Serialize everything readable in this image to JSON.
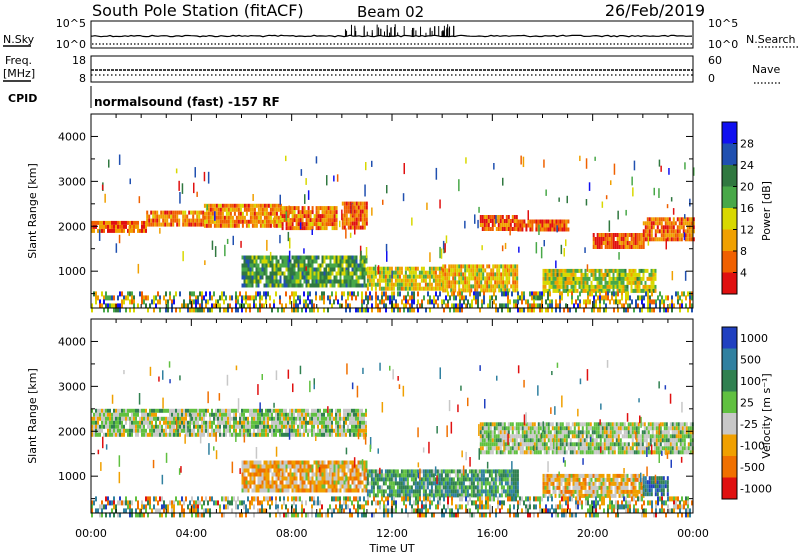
{
  "header": {
    "station": "South Pole Station (fitACF)",
    "beam": "Beam 02",
    "date": "26/Feb/2019"
  },
  "params": {
    "nsky_label": "N.Sky",
    "nsearch_label": "N.Search",
    "freq_label_1": "Freq.",
    "freq_label_2": "[MHz]",
    "nave_label": "Nave",
    "cpid_label": "CPID",
    "noise_left_ticks": [
      "10^5",
      "10^0"
    ],
    "noise_right_ticks": [
      "10^5",
      "10^0"
    ],
    "freq_left_ticks": [
      "18",
      "8"
    ],
    "freq_right_ticks": [
      "60",
      "0"
    ],
    "cpid_text": "normalsound (fast) -157 RF"
  },
  "x_axis": {
    "label": "Time UT",
    "ticks": [
      "00:00",
      "04:00",
      "08:00",
      "12:00",
      "16:00",
      "20:00",
      "00:00"
    ]
  },
  "panels": {
    "power": {
      "ylabel": "Slant Range [km]",
      "yticks": [
        "1000",
        "2000",
        "3000",
        "4000"
      ],
      "cbar_label": "Power [dB]",
      "cbar_ticks": [
        "4",
        "8",
        "12",
        "16",
        "20",
        "24",
        "28"
      ],
      "cbar_colors": [
        "#1010f0",
        "#2050b0",
        "#307840",
        "#48a848",
        "#d8d800",
        "#f0a000",
        "#f06000",
        "#e01010"
      ]
    },
    "velocity": {
      "ylabel": "Slant Range [km]",
      "yticks": [
        "1000",
        "2000",
        "3000",
        "4000"
      ],
      "cbar_label": "Velocity [m s⁻¹]",
      "cbar_ticks": [
        "1000",
        "500",
        "100",
        "25",
        "-25",
        "-100",
        "-500",
        "-1000"
      ],
      "cbar_colors": [
        "#2040c0",
        "#3080a0",
        "#308050",
        "#60c040",
        "#c8c8c8",
        "#f0a000",
        "#f07000",
        "#e01010"
      ]
    }
  },
  "chart_data": {
    "type": "heatmap",
    "title": "South Pole Station (fitACF)",
    "xlabel": "Time UT",
    "ylabel": "Slant Range [km]",
    "x_range_hours": [
      0,
      24
    ],
    "y_range_km": [
      180,
      4500
    ],
    "grid": false,
    "series": [
      {
        "name": "Power [dB]",
        "clim": [
          0,
          30
        ],
        "bands": [
          {
            "t_start": 0.0,
            "t_end": 2.2,
            "r_low": 1880,
            "r_high": 2120,
            "value": 6
          },
          {
            "t_start": 2.2,
            "t_end": 4.5,
            "r_low": 2050,
            "r_high": 2350,
            "value": 7
          },
          {
            "t_start": 4.5,
            "t_end": 7.6,
            "r_low": 1980,
            "r_high": 2500,
            "value": 8
          },
          {
            "t_start": 7.6,
            "t_end": 9.8,
            "r_low": 2000,
            "r_high": 2450,
            "value": 7
          },
          {
            "t_start": 10.0,
            "t_end": 11.0,
            "r_low": 2000,
            "r_high": 2550,
            "value": 6
          },
          {
            "t_start": 15.5,
            "t_end": 17.0,
            "r_low": 1950,
            "r_high": 2250,
            "value": 6
          },
          {
            "t_start": 17.0,
            "t_end": 19.0,
            "r_low": 1900,
            "r_high": 2150,
            "value": 5
          },
          {
            "t_start": 20.0,
            "t_end": 22.0,
            "r_low": 1550,
            "r_high": 1850,
            "value": 5
          },
          {
            "t_start": 22.0,
            "t_end": 24.0,
            "r_low": 1750,
            "r_high": 2200,
            "value": 6
          },
          {
            "t_start": 6.0,
            "t_end": 11.0,
            "r_low": 650,
            "r_high": 1350,
            "value": 18
          },
          {
            "t_start": 11.0,
            "t_end": 14.0,
            "r_low": 600,
            "r_high": 1100,
            "value": 12
          },
          {
            "t_start": 14.0,
            "t_end": 17.0,
            "r_low": 600,
            "r_high": 1150,
            "value": 11
          },
          {
            "t_start": 18.0,
            "t_end": 22.5,
            "r_low": 550,
            "r_high": 1050,
            "value": 14
          },
          {
            "t_start": 0.0,
            "t_end": 24.0,
            "r_low": 180,
            "r_high": 550,
            "value": 16
          }
        ]
      },
      {
        "name": "Velocity [m s⁻¹]",
        "clim": [
          -1000,
          1000
        ],
        "bands": [
          {
            "t_start": 0.0,
            "t_end": 11.0,
            "r_low": 1880,
            "r_high": 2500,
            "value": 0
          },
          {
            "t_start": 15.5,
            "t_end": 24.0,
            "r_low": 1550,
            "r_high": 2200,
            "value": 0
          },
          {
            "t_start": 6.0,
            "t_end": 11.0,
            "r_low": 650,
            "r_high": 1350,
            "value": -300
          },
          {
            "t_start": 11.0,
            "t_end": 17.0,
            "r_low": 600,
            "r_high": 1150,
            "value": 300
          },
          {
            "t_start": 18.0,
            "t_end": 22.0,
            "r_low": 550,
            "r_high": 1050,
            "value": -250
          },
          {
            "t_start": 22.0,
            "t_end": 23.0,
            "r_low": 600,
            "r_high": 1000,
            "value": 600
          },
          {
            "t_start": 0.0,
            "t_end": 24.0,
            "r_low": 180,
            "r_high": 550,
            "value": 0
          }
        ]
      }
    ]
  }
}
